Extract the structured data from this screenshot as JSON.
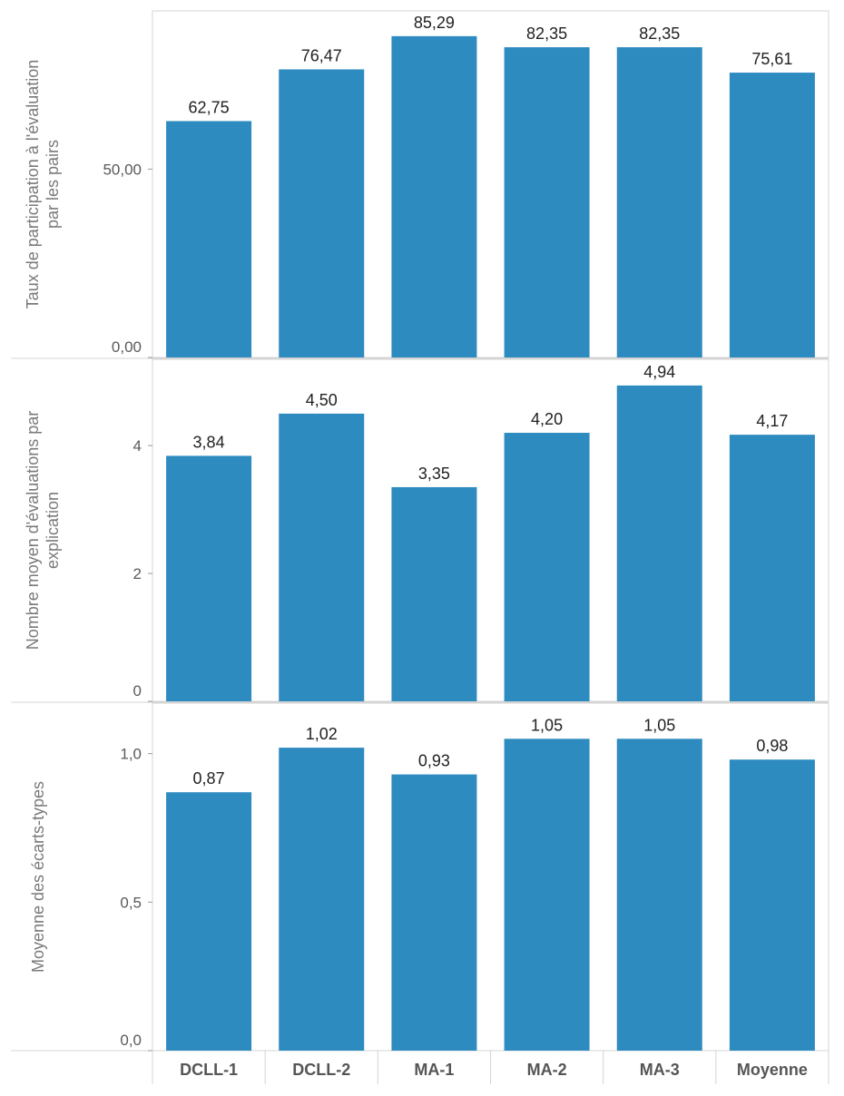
{
  "chart_data": {
    "type": "bar",
    "layout": "vertically stacked panels sharing one x-axis",
    "grid": false,
    "categories": [
      "DCLL-1",
      "DCLL-2",
      "MA-1",
      "MA-2",
      "MA-3",
      "Moyenne"
    ],
    "bar_color": "#2e8bc0",
    "panels": [
      {
        "ylabel_lines": [
          "Taux de participation à l'évaluation",
          "par les pairs"
        ],
        "ylim": [
          0,
          92
        ],
        "yticks": [
          0,
          50
        ],
        "ytick_labels": [
          "0,00",
          "50,00"
        ],
        "values": [
          62.75,
          76.47,
          85.29,
          82.35,
          82.35,
          75.61
        ],
        "value_labels": [
          "62,75",
          "76,47",
          "85,29",
          "82,35",
          "82,35",
          "75,61"
        ]
      },
      {
        "ylabel_lines": [
          "Nombre moyen d'évaluations par",
          "explication"
        ],
        "ylim": [
          0,
          5.35
        ],
        "yticks": [
          0,
          2,
          4
        ],
        "ytick_labels": [
          "0",
          "2",
          "4"
        ],
        "values": [
          3.84,
          4.5,
          3.35,
          4.2,
          4.94,
          4.17
        ],
        "value_labels": [
          "3,84",
          "4,50",
          "3,35",
          "4,20",
          "4,94",
          "4,17"
        ]
      },
      {
        "ylabel_lines": [
          "Moyenne des écarts-types"
        ],
        "ylim": [
          0,
          1.17
        ],
        "yticks": [
          0,
          0.5,
          1.0
        ],
        "ytick_labels": [
          "0,0",
          "0,5",
          "1,0"
        ],
        "values": [
          0.87,
          1.02,
          0.93,
          1.05,
          1.05,
          0.98
        ],
        "value_labels": [
          "0,87",
          "1,02",
          "0,93",
          "1,05",
          "1,05",
          "0,98"
        ]
      }
    ]
  }
}
